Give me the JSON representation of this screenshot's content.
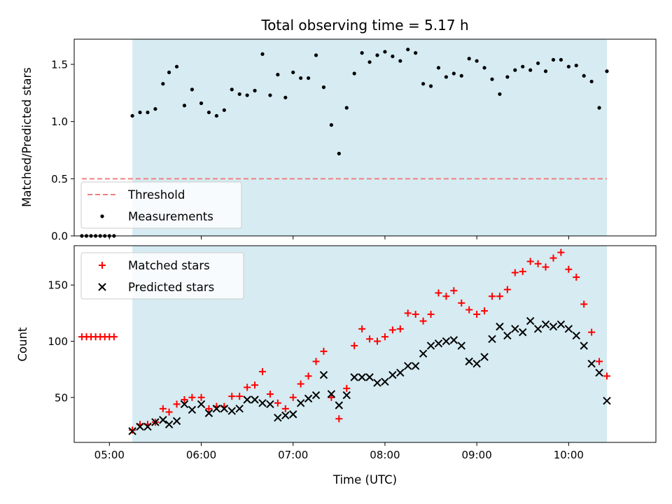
{
  "figure": {
    "title": "Total observing time = 5.17 h",
    "xlabel": "Time (UTC)"
  },
  "colors": {
    "shade": "#add8e6",
    "threshold": "#f08080",
    "measurement": "#000000",
    "matched": "#ff0000",
    "predicted": "#000000"
  },
  "chart_data": [
    {
      "type": "scatter",
      "ylabel": "Matched/Predicted stars",
      "xlim": [
        "04:37",
        "10:57"
      ],
      "ylim": [
        0,
        1.72
      ],
      "xticks": [
        "05:00",
        "06:00",
        "07:00",
        "08:00",
        "09:00",
        "10:00"
      ],
      "yticks": [
        "0.0",
        "0.5",
        "1.0",
        "1.5"
      ],
      "shaded_interval": [
        "05:15",
        "10:25"
      ],
      "threshold": {
        "name": "Threshold",
        "y": 0.5,
        "x": [
          "04:42",
          "10:25"
        ]
      },
      "legend": {
        "placement": "lower-left",
        "entries": [
          "Threshold",
          "Measurements"
        ]
      },
      "series": [
        {
          "name": "Measurements",
          "points": [
            [
              "04:42",
              0
            ],
            [
              "04:45",
              0
            ],
            [
              "04:48",
              0
            ],
            [
              "04:51",
              0
            ],
            [
              "04:54",
              0
            ],
            [
              "04:57",
              0
            ],
            [
              "05:00",
              0
            ],
            [
              "05:03",
              0
            ],
            [
              "05:15",
              1.05
            ],
            [
              "05:20",
              1.08
            ],
            [
              "05:25",
              1.08
            ],
            [
              "05:30",
              1.11
            ],
            [
              "05:35",
              1.33
            ],
            [
              "05:39",
              1.43
            ],
            [
              "05:44",
              1.48
            ],
            [
              "05:49",
              1.14
            ],
            [
              "05:54",
              1.28
            ],
            [
              "06:00",
              1.16
            ],
            [
              "06:05",
              1.08
            ],
            [
              "06:10",
              1.05
            ],
            [
              "06:15",
              1.1
            ],
            [
              "06:20",
              1.28
            ],
            [
              "06:25",
              1.24
            ],
            [
              "06:30",
              1.23
            ],
            [
              "06:35",
              1.27
            ],
            [
              "06:40",
              1.59
            ],
            [
              "06:45",
              1.23
            ],
            [
              "06:50",
              1.41
            ],
            [
              "06:55",
              1.21
            ],
            [
              "07:00",
              1.43
            ],
            [
              "07:05",
              1.38
            ],
            [
              "07:10",
              1.38
            ],
            [
              "07:15",
              1.58
            ],
            [
              "07:20",
              1.3
            ],
            [
              "07:25",
              0.97
            ],
            [
              "07:30",
              0.72
            ],
            [
              "07:35",
              1.12
            ],
            [
              "07:40",
              1.42
            ],
            [
              "07:45",
              1.6
            ],
            [
              "07:50",
              1.52
            ],
            [
              "07:55",
              1.58
            ],
            [
              "08:00",
              1.61
            ],
            [
              "08:05",
              1.57
            ],
            [
              "08:10",
              1.53
            ],
            [
              "08:15",
              1.63
            ],
            [
              "08:20",
              1.6
            ],
            [
              "08:25",
              1.33
            ],
            [
              "08:30",
              1.31
            ],
            [
              "08:35",
              1.47
            ],
            [
              "08:40",
              1.39
            ],
            [
              "08:45",
              1.42
            ],
            [
              "08:50",
              1.4
            ],
            [
              "08:55",
              1.55
            ],
            [
              "09:00",
              1.53
            ],
            [
              "09:05",
              1.47
            ],
            [
              "09:10",
              1.37
            ],
            [
              "09:15",
              1.24
            ],
            [
              "09:20",
              1.39
            ],
            [
              "09:25",
              1.45
            ],
            [
              "09:30",
              1.48
            ],
            [
              "09:35",
              1.45
            ],
            [
              "09:40",
              1.51
            ],
            [
              "09:45",
              1.44
            ],
            [
              "09:50",
              1.54
            ],
            [
              "09:55",
              1.54
            ],
            [
              "10:00",
              1.48
            ],
            [
              "10:05",
              1.49
            ],
            [
              "10:10",
              1.4
            ],
            [
              "10:15",
              1.35
            ],
            [
              "10:20",
              1.12
            ],
            [
              "10:25",
              1.44
            ]
          ]
        }
      ]
    },
    {
      "type": "scatter",
      "ylabel": "Count",
      "xlim": [
        "04:37",
        "10:57"
      ],
      "ylim": [
        10,
        185
      ],
      "xticks": [
        "05:00",
        "06:00",
        "07:00",
        "08:00",
        "09:00",
        "10:00"
      ],
      "yticks": [
        "50",
        "100",
        "150"
      ],
      "shaded_interval": [
        "05:15",
        "10:25"
      ],
      "legend": {
        "placement": "top-left",
        "entries": [
          "Matched stars",
          "Predicted stars"
        ]
      },
      "series": [
        {
          "name": "Matched stars",
          "marker": "plus",
          "points": [
            [
              "04:42",
              104
            ],
            [
              "04:45",
              104
            ],
            [
              "04:48",
              104
            ],
            [
              "04:51",
              104
            ],
            [
              "04:54",
              104
            ],
            [
              "04:57",
              104
            ],
            [
              "05:00",
              104
            ],
            [
              "05:03",
              104
            ],
            [
              "05:15",
              21
            ],
            [
              "05:20",
              26
            ],
            [
              "05:25",
              26
            ],
            [
              "05:30",
              28
            ],
            [
              "05:35",
              40
            ],
            [
              "05:39",
              37
            ],
            [
              "05:44",
              44
            ],
            [
              "05:49",
              48
            ],
            [
              "05:54",
              50
            ],
            [
              "06:00",
              50
            ],
            [
              "06:05",
              40
            ],
            [
              "06:10",
              42
            ],
            [
              "06:15",
              42
            ],
            [
              "06:20",
              51
            ],
            [
              "06:25",
              51
            ],
            [
              "06:30",
              59
            ],
            [
              "06:35",
              61
            ],
            [
              "06:40",
              73
            ],
            [
              "06:45",
              53
            ],
            [
              "06:50",
              45
            ],
            [
              "06:55",
              40
            ],
            [
              "07:00",
              50
            ],
            [
              "07:05",
              62
            ],
            [
              "07:10",
              69
            ],
            [
              "07:15",
              82
            ],
            [
              "07:20",
              91
            ],
            [
              "07:25",
              50
            ],
            [
              "07:30",
              31
            ],
            [
              "07:35",
              58
            ],
            [
              "07:40",
              96
            ],
            [
              "07:45",
              111
            ],
            [
              "07:50",
              102
            ],
            [
              "07:55",
              100
            ],
            [
              "08:00",
              104
            ],
            [
              "08:05",
              110
            ],
            [
              "08:10",
              111
            ],
            [
              "08:15",
              125
            ],
            [
              "08:20",
              124
            ],
            [
              "08:25",
              118
            ],
            [
              "08:30",
              124
            ],
            [
              "08:35",
              143
            ],
            [
              "08:40",
              140
            ],
            [
              "08:45",
              145
            ],
            [
              "08:50",
              134
            ],
            [
              "08:55",
              128
            ],
            [
              "09:00",
              124
            ],
            [
              "09:05",
              127
            ],
            [
              "09:10",
              140
            ],
            [
              "09:15",
              140
            ],
            [
              "09:20",
              146
            ],
            [
              "09:25",
              161
            ],
            [
              "09:30",
              162
            ],
            [
              "09:35",
              171
            ],
            [
              "09:40",
              169
            ],
            [
              "09:45",
              166
            ],
            [
              "09:50",
              174
            ],
            [
              "09:55",
              179
            ],
            [
              "10:00",
              164
            ],
            [
              "10:05",
              157
            ],
            [
              "10:10",
              133
            ],
            [
              "10:15",
              108
            ],
            [
              "10:20",
              82
            ],
            [
              "10:25",
              69
            ]
          ]
        },
        {
          "name": "Predicted stars",
          "marker": "x",
          "points": [
            [
              "05:15",
              20
            ],
            [
              "05:20",
              24
            ],
            [
              "05:25",
              24
            ],
            [
              "05:30",
              28
            ],
            [
              "05:35",
              30
            ],
            [
              "05:39",
              26
            ],
            [
              "05:44",
              29
            ],
            [
              "05:49",
              44
            ],
            [
              "05:54",
              39
            ],
            [
              "06:00",
              44
            ],
            [
              "06:05",
              36
            ],
            [
              "06:10",
              40
            ],
            [
              "06:15",
              40
            ],
            [
              "06:20",
              38
            ],
            [
              "06:25",
              40
            ],
            [
              "06:30",
              48
            ],
            [
              "06:35",
              48
            ],
            [
              "06:40",
              45
            ],
            [
              "06:45",
              44
            ],
            [
              "06:50",
              32
            ],
            [
              "06:55",
              34
            ],
            [
              "07:00",
              35
            ],
            [
              "07:05",
              45
            ],
            [
              "07:10",
              49
            ],
            [
              "07:15",
              52
            ],
            [
              "07:20",
              70
            ],
            [
              "07:25",
              53
            ],
            [
              "07:30",
              43
            ],
            [
              "07:35",
              52
            ],
            [
              "07:40",
              68
            ],
            [
              "07:45",
              68
            ],
            [
              "07:50",
              68
            ],
            [
              "07:55",
              63
            ],
            [
              "08:00",
              64
            ],
            [
              "08:05",
              70
            ],
            [
              "08:10",
              72
            ],
            [
              "08:15",
              78
            ],
            [
              "08:20",
              78
            ],
            [
              "08:25",
              89
            ],
            [
              "08:30",
              96
            ],
            [
              "08:35",
              98
            ],
            [
              "08:40",
              100
            ],
            [
              "08:45",
              101
            ],
            [
              "08:50",
              96
            ],
            [
              "08:55",
              82
            ],
            [
              "09:00",
              80
            ],
            [
              "09:05",
              86
            ],
            [
              "09:10",
              102
            ],
            [
              "09:15",
              113
            ],
            [
              "09:20",
              105
            ],
            [
              "09:25",
              111
            ],
            [
              "09:30",
              108
            ],
            [
              "09:35",
              118
            ],
            [
              "09:40",
              111
            ],
            [
              "09:45",
              115
            ],
            [
              "09:50",
              113
            ],
            [
              "09:55",
              115
            ],
            [
              "10:00",
              111
            ],
            [
              "10:05",
              105
            ],
            [
              "10:10",
              96
            ],
            [
              "10:15",
              80
            ],
            [
              "10:20",
              72
            ],
            [
              "10:25",
              47
            ]
          ]
        }
      ]
    }
  ]
}
